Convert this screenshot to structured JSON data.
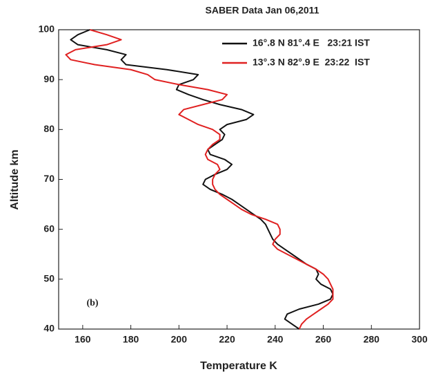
{
  "chart_data": {
    "type": "line",
    "title": "SABER Data  Jan 06,2011",
    "x_label": "Temperature K",
    "y_label": "Altitude km",
    "annotation": "(b)",
    "xlim": [
      150,
      300
    ],
    "xticks": [
      160,
      180,
      200,
      220,
      240,
      260,
      280,
      300
    ],
    "ylim": [
      40,
      100
    ],
    "yticks": [
      40,
      50,
      60,
      70,
      80,
      90,
      100
    ],
    "legend": "upper right",
    "series": [
      {
        "name": "16°.8 N 81°.4 E   23:21 IST",
        "color": "#111111",
        "y": [
          40,
          41,
          42,
          43,
          44,
          45,
          46,
          47,
          48,
          49,
          50,
          51,
          52,
          53,
          54,
          55,
          56,
          57,
          58,
          59,
          60,
          61,
          62,
          63,
          64,
          65,
          66,
          67,
          68,
          69,
          70,
          71,
          72,
          73,
          74,
          75,
          76,
          77,
          78,
          79,
          80,
          81,
          82,
          83,
          84,
          85,
          86,
          87,
          88,
          89,
          90,
          91,
          92,
          93,
          94,
          95,
          96,
          97,
          98,
          99,
          100
        ],
        "x": [
          250,
          247,
          244,
          245,
          250,
          258,
          263,
          264,
          263,
          259,
          257,
          258,
          257,
          253,
          250,
          247,
          244,
          241,
          239,
          238,
          237,
          236,
          234,
          231,
          228,
          225,
          222,
          218,
          213,
          210,
          211,
          215,
          220,
          222,
          219,
          213,
          212,
          215,
          218,
          219,
          217,
          220,
          228,
          231,
          226,
          217,
          210,
          204,
          199,
          200,
          206,
          208,
          195,
          178,
          176,
          178,
          170,
          158,
          155,
          158,
          163
        ]
      },
      {
        "name": "13°.3 N 82°.9 E  23:22  IST",
        "color": "#e02020",
        "y": [
          40,
          41,
          42,
          43,
          44,
          45,
          46,
          47,
          48,
          49,
          50,
          51,
          52,
          53,
          54,
          55,
          56,
          57,
          58,
          59,
          60,
          61,
          62,
          63,
          64,
          65,
          66,
          67,
          68,
          69,
          70,
          71,
          72,
          73,
          74,
          75,
          76,
          77,
          78,
          79,
          80,
          81,
          82,
          83,
          84,
          85,
          86,
          87,
          88,
          89,
          90,
          91,
          92,
          93,
          94,
          95,
          96,
          97,
          98,
          99,
          100
        ],
        "x": [
          250,
          251,
          253,
          256,
          259,
          262,
          264,
          264,
          264,
          263,
          262,
          260,
          257,
          253,
          249,
          245,
          241,
          239,
          240,
          242,
          242,
          241,
          236,
          230,
          226,
          223,
          220,
          217,
          215,
          214,
          214,
          215,
          217,
          216,
          212,
          211,
          212,
          214,
          217,
          217,
          214,
          208,
          204,
          200,
          202,
          210,
          218,
          220,
          212,
          200,
          190,
          187,
          180,
          165,
          155,
          153,
          157,
          170,
          176,
          170,
          163
        ]
      }
    ]
  }
}
